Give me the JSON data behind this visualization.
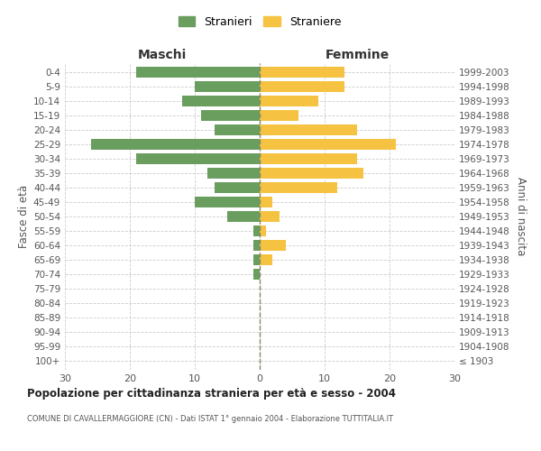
{
  "age_groups": [
    "100+",
    "95-99",
    "90-94",
    "85-89",
    "80-84",
    "75-79",
    "70-74",
    "65-69",
    "60-64",
    "55-59",
    "50-54",
    "45-49",
    "40-44",
    "35-39",
    "30-34",
    "25-29",
    "20-24",
    "15-19",
    "10-14",
    "5-9",
    "0-4"
  ],
  "birth_years": [
    "≤ 1903",
    "1904-1908",
    "1909-1913",
    "1914-1918",
    "1919-1923",
    "1924-1928",
    "1929-1933",
    "1934-1938",
    "1939-1943",
    "1944-1948",
    "1949-1953",
    "1954-1958",
    "1959-1963",
    "1964-1968",
    "1969-1973",
    "1974-1978",
    "1979-1983",
    "1984-1988",
    "1989-1993",
    "1994-1998",
    "1999-2003"
  ],
  "males": [
    0,
    0,
    0,
    0,
    0,
    0,
    1,
    1,
    1,
    1,
    5,
    10,
    7,
    8,
    19,
    26,
    7,
    9,
    12,
    10,
    19
  ],
  "females": [
    0,
    0,
    0,
    0,
    0,
    0,
    0,
    2,
    4,
    1,
    3,
    2,
    12,
    16,
    15,
    21,
    15,
    6,
    9,
    13,
    13
  ],
  "male_color": "#6a9e5f",
  "female_color": "#f5c242",
  "title": "Popolazione per cittadinanza straniera per età e sesso - 2004",
  "subtitle": "COMUNE DI CAVALLERMAGGIORE (CN) - Dati ISTAT 1° gennaio 2004 - Elaborazione TUTTITALIA.IT",
  "xlabel_left": "Maschi",
  "xlabel_right": "Femmine",
  "ylabel_left": "Fasce di età",
  "ylabel_right": "Anni di nascita",
  "legend_male": "Stranieri",
  "legend_female": "Straniere",
  "xlim": 30,
  "background_color": "#ffffff",
  "grid_color": "#cccccc"
}
